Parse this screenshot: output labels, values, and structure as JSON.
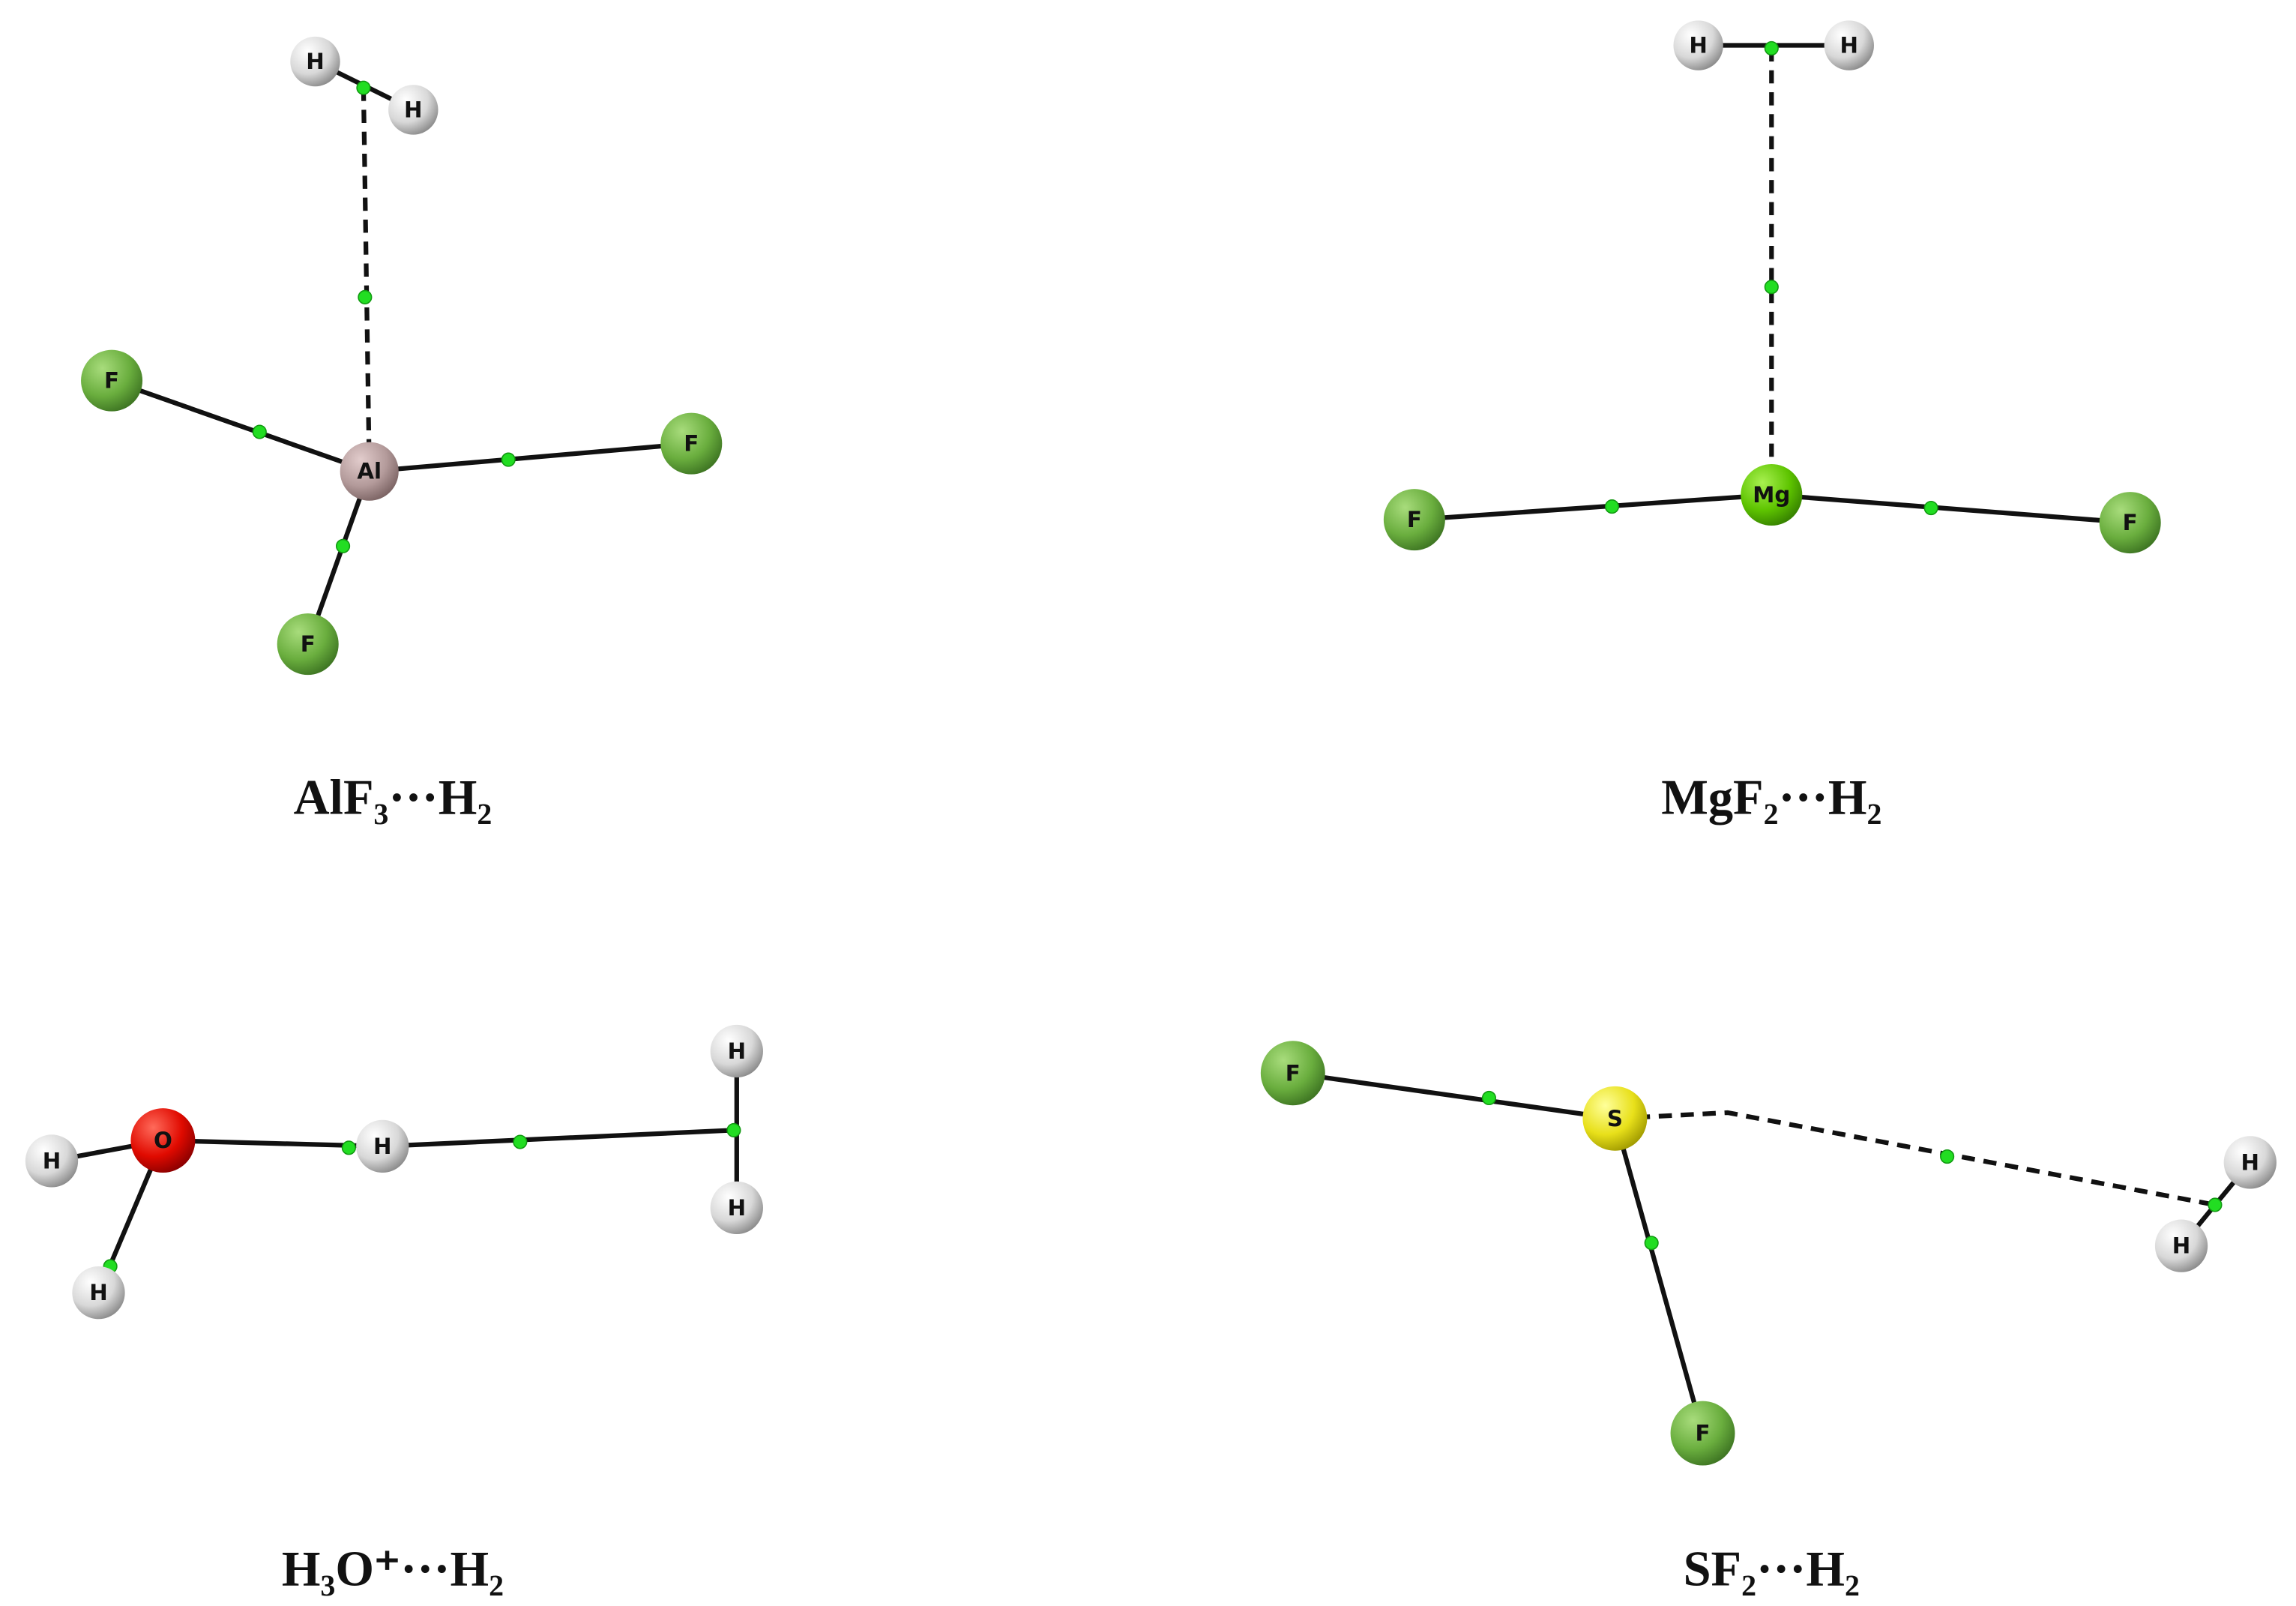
{
  "panels": [
    {
      "caption": "AlF₃···H₂",
      "atoms": [
        {
          "label": "H"
        },
        {
          "label": "H"
        },
        {
          "label": "Al"
        },
        {
          "label": "F"
        },
        {
          "label": "F"
        },
        {
          "label": "F"
        }
      ]
    },
    {
      "caption": "MgF₂···H₂",
      "atoms": [
        {
          "label": "H"
        },
        {
          "label": "H"
        },
        {
          "label": "Mg"
        },
        {
          "label": "F"
        },
        {
          "label": "F"
        }
      ]
    },
    {
      "caption": "H₃O⁺···H₂",
      "atoms": [
        {
          "label": "H"
        },
        {
          "label": "O"
        },
        {
          "label": "H"
        },
        {
          "label": "H"
        },
        {
          "label": "H"
        },
        {
          "label": "H"
        }
      ]
    },
    {
      "caption": "SF₂···H₂",
      "atoms": [
        {
          "label": "F"
        },
        {
          "label": "S"
        },
        {
          "label": "F"
        },
        {
          "label": "H"
        },
        {
          "label": "H"
        }
      ]
    }
  ]
}
